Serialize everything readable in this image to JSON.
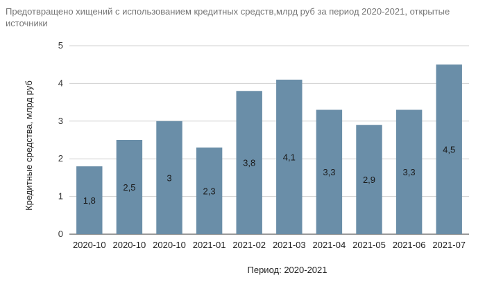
{
  "chart_data": {
    "type": "bar",
    "title": "Предотвращено хищений с использованием кредитных средств,млрд руб за период 2020-2021, открытые источники",
    "xlabel": "Период: 2020-2021",
    "ylabel": "Кредитные средства, млрд руб",
    "categories": [
      "2020-10",
      "2020-10",
      "2020-10",
      "2021-01",
      "2021-02",
      "2021-03",
      "2021-04",
      "2021-05",
      "2021-06",
      "2021-07"
    ],
    "values": [
      1.8,
      2.5,
      3,
      2.3,
      3.8,
      4.1,
      3.3,
      2.9,
      3.3,
      4.5
    ],
    "data_labels": [
      "1,8",
      "2,5",
      "3",
      "2,3",
      "3,8",
      "4,1",
      "3,3",
      "2,9",
      "3,3",
      "4,5"
    ],
    "y_ticks": [
      "0",
      "1",
      "2",
      "3",
      "4",
      "5"
    ],
    "ylim": [
      0,
      5
    ],
    "grid": true,
    "legend": "none",
    "bar_color": "#6a8ea8"
  }
}
